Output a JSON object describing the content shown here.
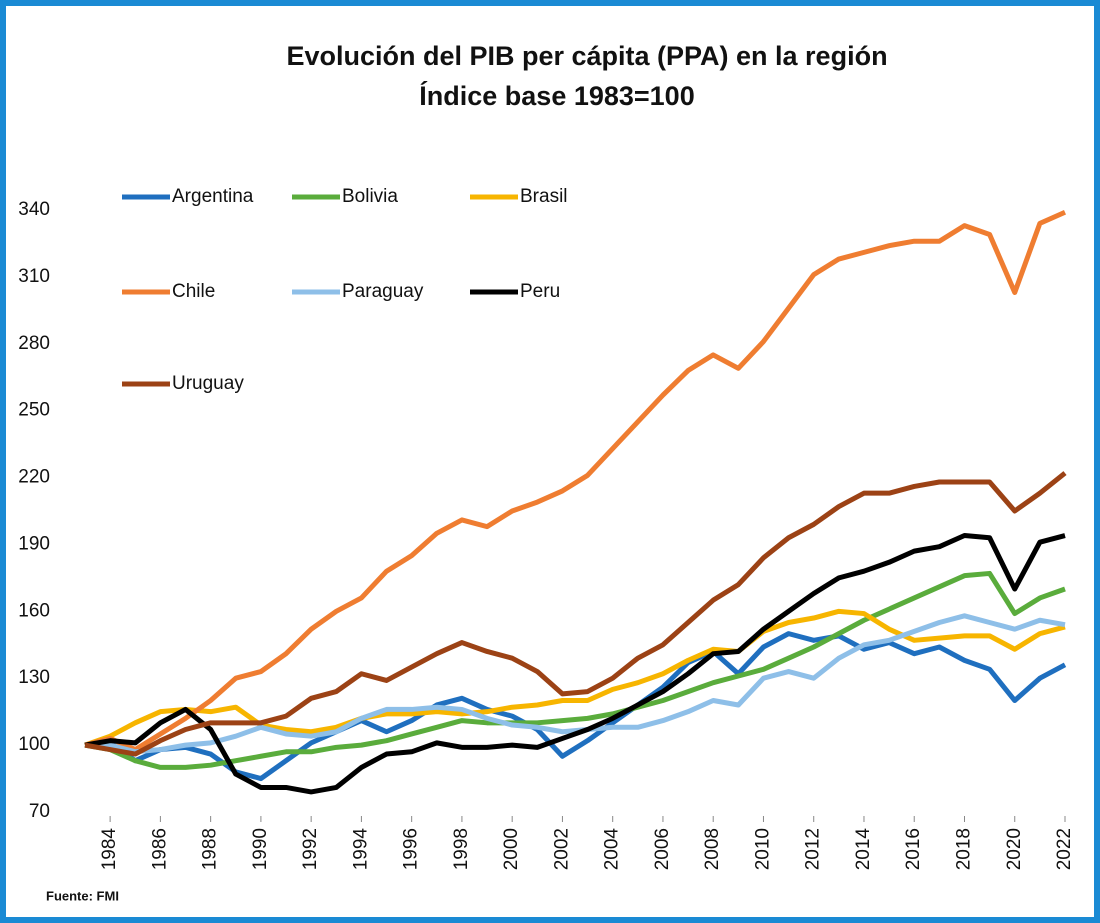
{
  "chart_data": {
    "type": "line",
    "title": "Evolución del PIB per cápita (PPA) en la región",
    "subtitle": "Índice base 1983=100",
    "source": "Fuente: FMI",
    "x": [
      1983,
      1984,
      1985,
      1986,
      1987,
      1988,
      1989,
      1990,
      1991,
      1992,
      1993,
      1994,
      1995,
      1996,
      1997,
      1998,
      1999,
      2000,
      2001,
      2002,
      2003,
      2004,
      2005,
      2006,
      2007,
      2008,
      2009,
      2010,
      2011,
      2012,
      2013,
      2014,
      2015,
      2016,
      2017,
      2018,
      2019,
      2020,
      2021,
      2022
    ],
    "xlim": [
      1983,
      2022
    ],
    "xticks": [
      1984,
      1986,
      1988,
      1990,
      1992,
      1994,
      1996,
      1998,
      2000,
      2002,
      2004,
      2006,
      2008,
      2010,
      2012,
      2014,
      2016,
      2018,
      2020,
      2022
    ],
    "ylim": [
      70,
      340
    ],
    "yticks": [
      70,
      100,
      130,
      160,
      190,
      220,
      250,
      280,
      310,
      340
    ],
    "grid": false,
    "legend": "top-left",
    "series": [
      {
        "name": "Argentina",
        "color": "#1f6fbf",
        "values": [
          100,
          101,
          93,
          98,
          99,
          96,
          88,
          85,
          93,
          101,
          106,
          111,
          106,
          111,
          118,
          121,
          116,
          113,
          107,
          95,
          102,
          110,
          118,
          126,
          137,
          142,
          132,
          144,
          150,
          147,
          149,
          143,
          146,
          141,
          144,
          138,
          134,
          120,
          130,
          136
        ]
      },
      {
        "name": "Bolivia",
        "color": "#5aac3c",
        "values": [
          100,
          98,
          93,
          90,
          90,
          91,
          93,
          95,
          97,
          97,
          99,
          100,
          102,
          105,
          108,
          111,
          110,
          110,
          110,
          111,
          112,
          114,
          117,
          120,
          124,
          128,
          131,
          134,
          139,
          144,
          150,
          156,
          161,
          166,
          171,
          176,
          177,
          159,
          166,
          170
        ]
      },
      {
        "name": "Brasil",
        "color": "#f7b500",
        "values": [
          100,
          104,
          110,
          115,
          116,
          115,
          117,
          109,
          107,
          106,
          108,
          112,
          114,
          114,
          115,
          114,
          115,
          117,
          118,
          120,
          120,
          125,
          128,
          132,
          138,
          143,
          142,
          151,
          155,
          157,
          160,
          159,
          152,
          147,
          148,
          149,
          149,
          143,
          150,
          153
        ]
      },
      {
        "name": "Chile",
        "color": "#ef7d31",
        "values": [
          100,
          103,
          98,
          105,
          112,
          120,
          130,
          133,
          141,
          152,
          160,
          166,
          178,
          185,
          195,
          201,
          198,
          205,
          209,
          214,
          221,
          233,
          245,
          257,
          268,
          275,
          269,
          281,
          296,
          311,
          318,
          321,
          324,
          326,
          326,
          333,
          329,
          303,
          334,
          339
        ]
      },
      {
        "name": "Paraguay",
        "color": "#8ebfe8",
        "values": [
          100,
          100,
          97,
          98,
          100,
          101,
          104,
          108,
          105,
          104,
          106,
          112,
          116,
          116,
          117,
          116,
          112,
          109,
          108,
          106,
          107,
          108,
          108,
          111,
          115,
          120,
          118,
          130,
          133,
          130,
          139,
          145,
          147,
          151,
          155,
          158,
          155,
          152,
          156,
          154
        ]
      },
      {
        "name": "Peru",
        "color": "#000000",
        "values": [
          100,
          102,
          101,
          110,
          116,
          107,
          87,
          81,
          81,
          79,
          81,
          90,
          96,
          97,
          101,
          99,
          99,
          100,
          99,
          103,
          107,
          112,
          118,
          124,
          132,
          141,
          142,
          152,
          160,
          168,
          175,
          178,
          182,
          187,
          189,
          194,
          193,
          170,
          191,
          194
        ]
      },
      {
        "name": "Uruguay",
        "color": "#9c4215",
        "values": [
          100,
          98,
          96,
          102,
          107,
          110,
          110,
          110,
          113,
          121,
          124,
          132,
          129,
          135,
          141,
          146,
          142,
          139,
          133,
          123,
          124,
          130,
          139,
          145,
          155,
          165,
          172,
          184,
          193,
          199,
          207,
          213,
          213,
          216,
          218,
          218,
          218,
          205,
          213,
          222
        ]
      }
    ]
  }
}
